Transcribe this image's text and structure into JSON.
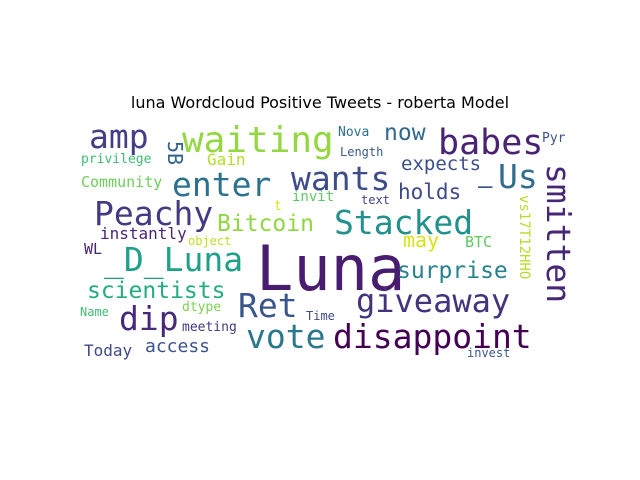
{
  "title": "luna Wordcloud Positive Tweets - roberta Model",
  "words": [
    {
      "text": "Luna",
      "color": "#481d6f"
    },
    {
      "text": "waiting",
      "color": "#93d741"
    },
    {
      "text": "babes",
      "color": "#482374"
    },
    {
      "text": "amp",
      "color": "#433e85"
    },
    {
      "text": "enter",
      "color": "#2c718e"
    },
    {
      "text": "wants",
      "color": "#3d4d8a"
    },
    {
      "text": "Us",
      "color": "#2f6c8e"
    },
    {
      "text": "—",
      "color": "#3b528b"
    },
    {
      "text": "now",
      "color": "#31688e"
    },
    {
      "text": "holds",
      "color": "#3e4989"
    },
    {
      "text": "expects",
      "color": "#3c4f8a"
    },
    {
      "text": "Peachy",
      "color": "#443a83"
    },
    {
      "text": "Stacked",
      "color": "#21918c"
    },
    {
      "text": "Bitcoin",
      "color": "#90d743"
    },
    {
      "text": "smitten",
      "color": "#482677"
    },
    {
      "text": "_D_Luna",
      "color": "#1fa088"
    },
    {
      "text": "giveaway",
      "color": "#46337e"
    },
    {
      "text": "surprise",
      "color": "#26828e"
    },
    {
      "text": "may",
      "color": "#d8e219"
    },
    {
      "text": "BTC",
      "color": "#5ec962"
    },
    {
      "text": "scientists",
      "color": "#25ab82"
    },
    {
      "text": "Ret",
      "color": "#3a548c"
    },
    {
      "text": "dip",
      "color": "#482878"
    },
    {
      "text": "vote",
      "color": "#2a788e"
    },
    {
      "text": "disappoint",
      "color": "#440154"
    },
    {
      "text": "instantly",
      "color": "#482576"
    },
    {
      "text": "Community",
      "color": "#6ece58"
    },
    {
      "text": "privilege",
      "color": "#3fbc73"
    },
    {
      "text": "5B",
      "color": "#33638d"
    },
    {
      "text": "Gain",
      "color": "#b5de2b"
    },
    {
      "text": "invit",
      "color": "#5ec962"
    },
    {
      "text": "t",
      "color": "#d8e219"
    },
    {
      "text": "text",
      "color": "#414487"
    },
    {
      "text": "Length",
      "color": "#38598c"
    },
    {
      "text": "Nova",
      "color": "#2d708e"
    },
    {
      "text": "Pyr",
      "color": "#3b528b"
    },
    {
      "text": "vs17T12HHO",
      "color": "#b5de2b"
    },
    {
      "text": "WL",
      "color": "#482475"
    },
    {
      "text": "object",
      "color": "#c2df23"
    },
    {
      "text": "dtype",
      "color": "#7ad151"
    },
    {
      "text": "Name",
      "color": "#3fbc73"
    },
    {
      "text": "meeting",
      "color": "#453781"
    },
    {
      "text": "Time",
      "color": "#3e4989"
    },
    {
      "text": "Today",
      "color": "#3e4a89"
    },
    {
      "text": "access",
      "color": "#3b528b"
    },
    {
      "text": "invest",
      "color": "#39568c"
    }
  ]
}
